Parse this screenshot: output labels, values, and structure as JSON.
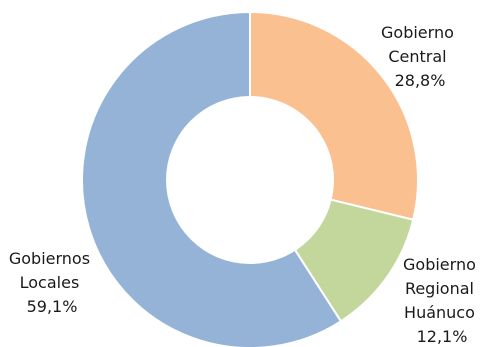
{
  "chart_data": {
    "type": "pie",
    "variant": "donut",
    "title": "",
    "start_angle_deg": 0,
    "direction": "clockwise",
    "slices": [
      {
        "label_lines": [
          "Gobierno",
          "Central"
        ],
        "value_text": "28,8%",
        "value": 28.8,
        "color": "#FAC090"
      },
      {
        "label_lines": [
          "Gobierno",
          "Regional",
          "Huánuco"
        ],
        "value_text": "12,1%",
        "value": 12.1,
        "color": "#C3D69B"
      },
      {
        "label_lines": [
          "Gobiernos",
          "Locales"
        ],
        "value_text": "59,1%",
        "value": 59.1,
        "color": "#95B3D7"
      }
    ],
    "slice_border_color": "#ffffff",
    "legend": "none"
  }
}
